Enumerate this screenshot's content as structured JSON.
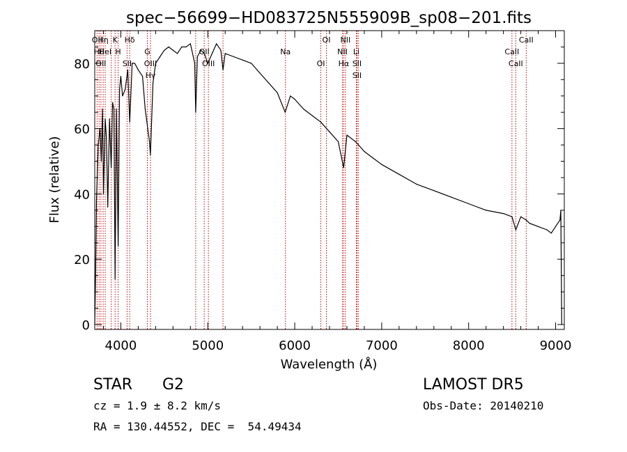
{
  "chart_data": {
    "type": "line",
    "title": "spec−56699−HD083725N555909B_sp08−201.fits",
    "xlabel": "Wavelength (Å)",
    "ylabel": "Flux (relative)",
    "xlim": [
      3700,
      9100
    ],
    "ylim": [
      -1.5,
      90
    ],
    "xticks": [
      4000,
      5000,
      6000,
      7000,
      8000,
      9000
    ],
    "yticks": [
      0,
      20,
      40,
      60,
      80
    ],
    "grid": false,
    "series": [
      {
        "color": "#000000",
        "x": [
          3700,
          3710,
          3720,
          3740,
          3760,
          3775,
          3790,
          3800,
          3820,
          3835,
          3850,
          3870,
          3889,
          3905,
          3920,
          3934,
          3950,
          3969,
          3985,
          4000,
          4020,
          4050,
          4080,
          4102,
          4130,
          4160,
          4200,
          4250,
          4280,
          4310,
          4330,
          4340,
          4370,
          4400,
          4450,
          4500,
          4550,
          4600,
          4650,
          4700,
          4750,
          4800,
          4850,
          4861,
          4880,
          4920,
          4960,
          5000,
          5050,
          5100,
          5150,
          5175,
          5200,
          5300,
          5400,
          5500,
          5600,
          5700,
          5800,
          5890,
          5950,
          6000,
          6100,
          6200,
          6300,
          6400,
          6500,
          6563,
          6600,
          6700,
          6800,
          6900,
          7000,
          7200,
          7400,
          7600,
          7800,
          8000,
          8200,
          8400,
          8498,
          8542,
          8600,
          8662,
          8700,
          8800,
          8900,
          8950,
          9000,
          9050,
          9060,
          9070
        ],
        "y": [
          0,
          15,
          38,
          55,
          60,
          50,
          66,
          40,
          63,
          57,
          36,
          63,
          48,
          68,
          66,
          14,
          66,
          24,
          72,
          76,
          70,
          72,
          78,
          62,
          80,
          80,
          78,
          76,
          66,
          60,
          56,
          52,
          74,
          80,
          82,
          84,
          85,
          84,
          83,
          85,
          85,
          86,
          80,
          65,
          82,
          84,
          83,
          80,
          83,
          86,
          84,
          78,
          83,
          82,
          81,
          80,
          77,
          74,
          71,
          65,
          70,
          69,
          66,
          64,
          62,
          59,
          56,
          48,
          58,
          56,
          53,
          51,
          49,
          46,
          43,
          41,
          39,
          37,
          35,
          34,
          33,
          29,
          33,
          32,
          31,
          30,
          29,
          28,
          30,
          32,
          35,
          0
        ]
      }
    ],
    "line_markers": [
      {
        "x": 3727,
        "labels": [
          "OII"
        ]
      },
      {
        "x": 3750,
        "labels": [
          "Hθ"
        ]
      },
      {
        "x": 3771,
        "labels": [
          "OII"
        ]
      },
      {
        "x": 3797,
        "labels": [
          "Hη"
        ]
      },
      {
        "x": 3820,
        "labels": [
          "HeI"
        ]
      },
      {
        "x": 3889,
        "labels": []
      },
      {
        "x": 3934,
        "labels": [
          "K"
        ]
      },
      {
        "x": 3969,
        "labels": [
          "H"
        ]
      },
      {
        "x": 4072,
        "labels": [
          "SII"
        ]
      },
      {
        "x": 4102,
        "labels": [
          "Hδ"
        ]
      },
      {
        "x": 4305,
        "labels": [
          "G"
        ]
      },
      {
        "x": 4341,
        "labels": [
          "OIII",
          "Hγ"
        ]
      },
      {
        "x": 4861,
        "labels": []
      },
      {
        "x": 4959,
        "labels": [
          "OII"
        ]
      },
      {
        "x": 5007,
        "labels": [
          "OIII"
        ]
      },
      {
        "x": 5175,
        "labels": []
      },
      {
        "x": 5893,
        "labels": [
          "Na"
        ]
      },
      {
        "x": 6300,
        "labels": [
          "OI"
        ]
      },
      {
        "x": 6364,
        "labels": [
          "OI"
        ]
      },
      {
        "x": 6548,
        "labels": [
          "NII"
        ]
      },
      {
        "x": 6563,
        "labels": [
          "Hα"
        ]
      },
      {
        "x": 6583,
        "labels": [
          "NII"
        ]
      },
      {
        "x": 6708,
        "labels": [
          "Li"
        ]
      },
      {
        "x": 6716,
        "labels": [
          "SII",
          "SII"
        ]
      },
      {
        "x": 6731,
        "labels": []
      },
      {
        "x": 8498,
        "labels": [
          "CaII"
        ]
      },
      {
        "x": 8542,
        "labels": [
          "CaII"
        ]
      },
      {
        "x": 8662,
        "labels": [
          "CaII"
        ]
      }
    ],
    "marker_color": "#c00000"
  },
  "info": {
    "object_class": "STAR",
    "subclass": "G2",
    "survey": "LAMOST DR5",
    "redshift": "cz = 1.9 ± 8.2 km/s",
    "obs_date": "Obs-Date: 20140210",
    "coords": "RA = 130.44552, DEC =  54.49434"
  }
}
